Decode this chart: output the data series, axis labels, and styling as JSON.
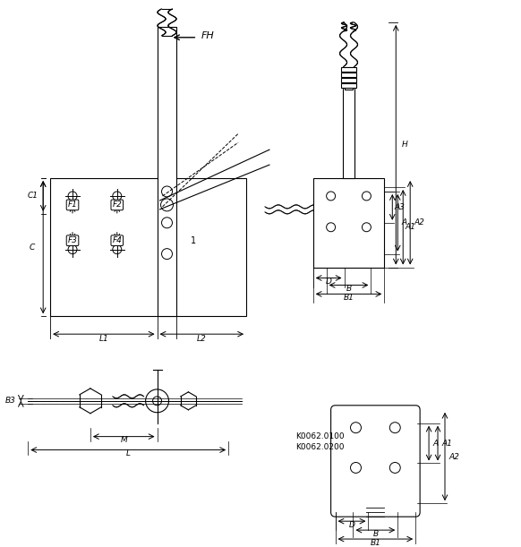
{
  "bg_color": "#ffffff",
  "line_color": "#000000",
  "dim_color": "#000000",
  "title": "",
  "labels": {
    "FH": "FH",
    "F1": "F1",
    "F2": "F2",
    "F3": "F3",
    "F4": "F4",
    "C1": "C1",
    "C": "C",
    "L1": "L1",
    "L2": "L2",
    "B3": "B3",
    "M": "M",
    "L": "L",
    "H": "H",
    "A1": "A1",
    "A2": "A2",
    "A3": "A3",
    "A": "A",
    "B": "B",
    "B1": "B1",
    "D": "D",
    "label1": "1",
    "k1": "K0062.0100",
    "k2": "K0062.0200"
  }
}
